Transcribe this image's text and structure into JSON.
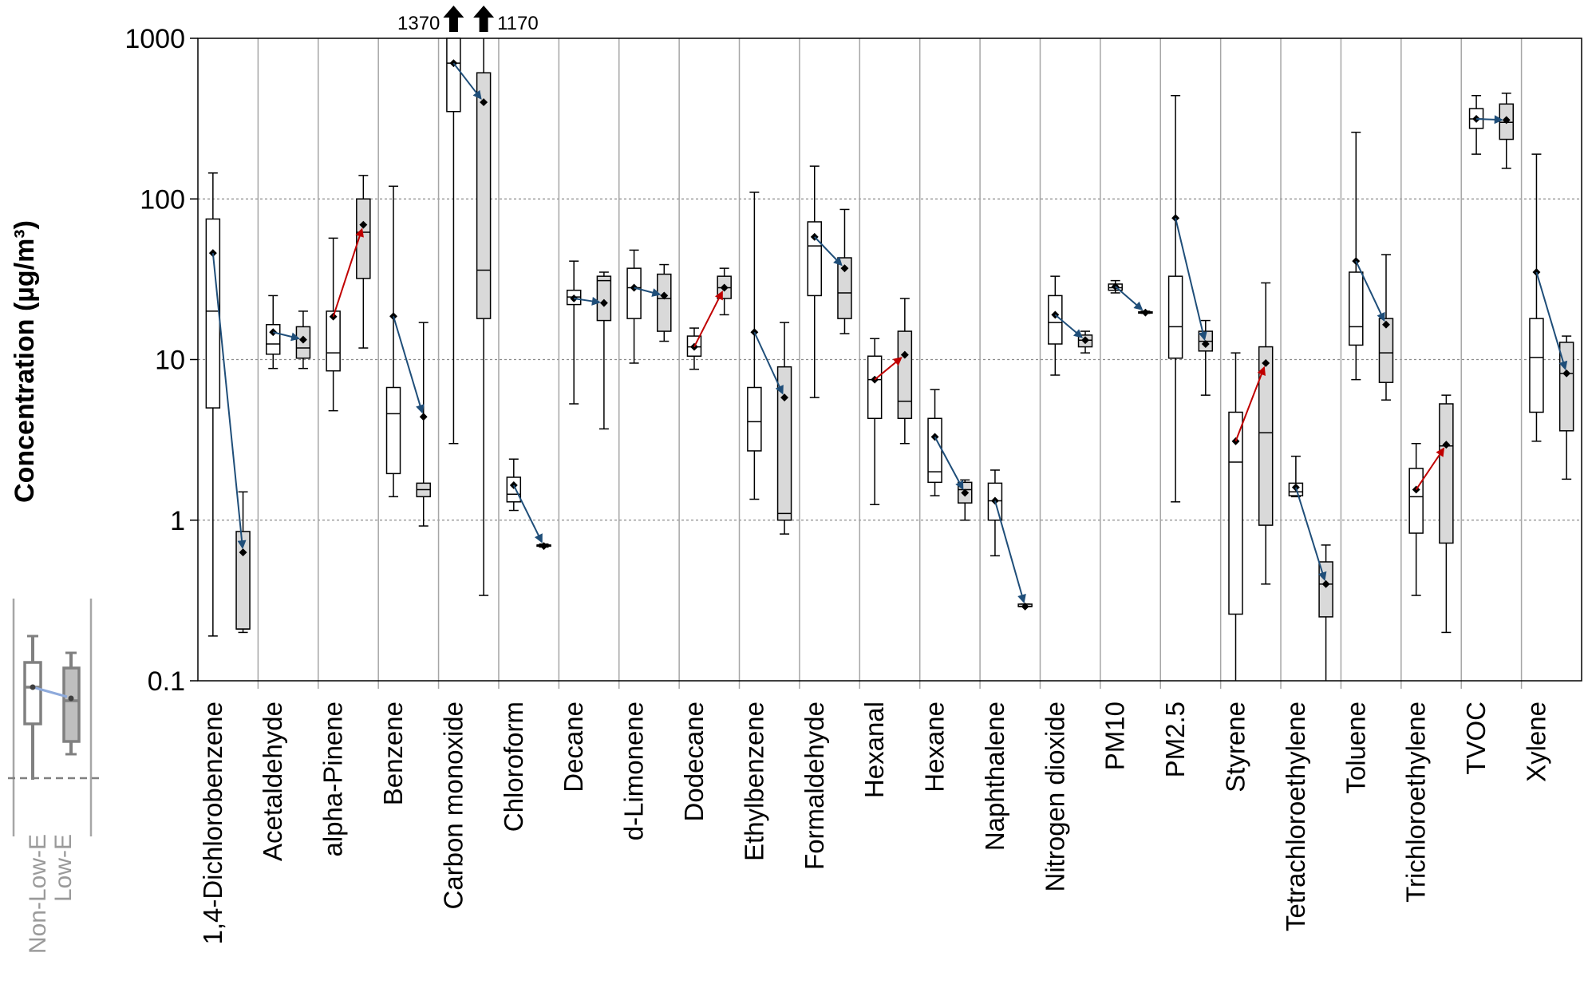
{
  "chart_data": {
    "type": "box",
    "ylabel": "Concentration (µg/m³)",
    "yscale": "log",
    "ylim": [
      0.1,
      1000
    ],
    "yticks": [
      {
        "value": 0.1,
        "label": "0.1"
      },
      {
        "value": 1,
        "label": "1"
      },
      {
        "value": 10,
        "label": "10"
      },
      {
        "value": 100,
        "label": "100"
      },
      {
        "value": 1000,
        "label": "1000"
      }
    ],
    "grid": true,
    "groups": [
      "Non-Low-E",
      "Low-E"
    ],
    "colors": {
      "non_low_e_fill": "#ffffff",
      "low_e_fill": "#d9d9d9",
      "decrease_arrow": "#1f4e79",
      "increase_arrow": "#c00000"
    },
    "categories": [
      {
        "name": "1,4-Dichlorobenzene",
        "non_low_e": {
          "min": 0.19,
          "q1": 5,
          "median": 20,
          "q3": 75,
          "max": 145,
          "mean": 46
        },
        "low_e": {
          "min": 0.2,
          "q1": 0.21,
          "median": 0.21,
          "q3": 0.85,
          "max": 1.5,
          "mean": 0.63
        },
        "trend": "decrease"
      },
      {
        "name": "Acetaldehyde",
        "non_low_e": {
          "min": 8.8,
          "q1": 10.8,
          "median": 12.5,
          "q3": 16.5,
          "max": 25,
          "mean": 14.8
        },
        "low_e": {
          "min": 8.8,
          "q1": 10.2,
          "median": 11.8,
          "q3": 16,
          "max": 20,
          "mean": 13.3
        },
        "trend": "decrease"
      },
      {
        "name": "alpha-Pinene",
        "non_low_e": {
          "min": 4.8,
          "q1": 8.5,
          "median": 11,
          "q3": 20,
          "max": 57,
          "mean": 18.5
        },
        "low_e": {
          "min": 11.8,
          "q1": 32,
          "median": 62,
          "q3": 100,
          "max": 140,
          "mean": 69
        },
        "trend": "increase"
      },
      {
        "name": "Benzene",
        "non_low_e": {
          "min": 1.4,
          "q1": 1.95,
          "median": 4.6,
          "q3": 6.7,
          "max": 120,
          "mean": 18.6
        },
        "low_e": {
          "min": 0.92,
          "q1": 1.4,
          "median": 1.55,
          "q3": 1.7,
          "max": 17,
          "mean": 4.4
        },
        "trend": "decrease"
      },
      {
        "name": "Carbon monoxide",
        "non_low_e": {
          "min": 3,
          "q1": 350,
          "median": 700,
          "q3": 1000,
          "max": 1000,
          "mean": 700
        },
        "low_e": {
          "min": 0.34,
          "q1": 18,
          "median": 36,
          "q3": 610,
          "max": 1000,
          "mean": 400
        },
        "trend": "decrease",
        "clipped_max": [
          "1370",
          "1170"
        ]
      },
      {
        "name": "Chloroform",
        "non_low_e": {
          "min": 1.15,
          "q1": 1.3,
          "median": 1.45,
          "q3": 1.85,
          "max": 2.4,
          "mean": 1.65
        },
        "low_e": {
          "min": 0.68,
          "q1": 0.69,
          "median": 0.7,
          "q3": 0.7,
          "max": 0.71,
          "mean": 0.69
        },
        "trend": "decrease"
      },
      {
        "name": "Decane",
        "non_low_e": {
          "min": 5.3,
          "q1": 22,
          "median": 24.5,
          "q3": 27,
          "max": 41,
          "mean": 24
        },
        "low_e": {
          "min": 3.7,
          "q1": 17.5,
          "median": 31,
          "q3": 33,
          "max": 35,
          "mean": 22.5
        },
        "trend": "decrease"
      },
      {
        "name": "d-Limonene",
        "non_low_e": {
          "min": 9.5,
          "q1": 18,
          "median": 28,
          "q3": 37,
          "max": 48,
          "mean": 28
        },
        "low_e": {
          "min": 13,
          "q1": 15,
          "median": 24,
          "q3": 34,
          "max": 39,
          "mean": 25
        },
        "trend": "decrease"
      },
      {
        "name": "Dodecane",
        "non_low_e": {
          "min": 8.7,
          "q1": 10.5,
          "median": 12,
          "q3": 14,
          "max": 15.7,
          "mean": 12
        },
        "low_e": {
          "min": 19,
          "q1": 24,
          "median": 28,
          "q3": 33,
          "max": 37,
          "mean": 28
        },
        "trend": "increase"
      },
      {
        "name": "Ethylbenzene",
        "non_low_e": {
          "min": 1.35,
          "q1": 2.7,
          "median": 4.1,
          "q3": 6.7,
          "max": 110,
          "mean": 14.8
        },
        "low_e": {
          "min": 0.82,
          "q1": 1,
          "median": 1.1,
          "q3": 9,
          "max": 17,
          "mean": 5.8
        },
        "trend": "decrease"
      },
      {
        "name": "Formaldehyde",
        "non_low_e": {
          "min": 5.8,
          "q1": 25,
          "median": 51,
          "q3": 72,
          "max": 160,
          "mean": 58
        },
        "low_e": {
          "min": 14.5,
          "q1": 18,
          "median": 26,
          "q3": 43,
          "max": 86,
          "mean": 37
        },
        "trend": "decrease"
      },
      {
        "name": "Hexanal",
        "non_low_e": {
          "min": 1.25,
          "q1": 4.3,
          "median": 7.5,
          "q3": 10.5,
          "max": 13.5,
          "mean": 7.5
        },
        "low_e": {
          "min": 3,
          "q1": 4.3,
          "median": 5.5,
          "q3": 15,
          "max": 24,
          "mean": 10.7
        },
        "trend": "increase"
      },
      {
        "name": "Hexane",
        "non_low_e": {
          "min": 1.42,
          "q1": 1.72,
          "median": 2,
          "q3": 4.3,
          "max": 6.5,
          "mean": 3.3
        },
        "low_e": {
          "min": 1,
          "q1": 1.28,
          "median": 1.55,
          "q3": 1.72,
          "max": 1.78,
          "mean": 1.48
        },
        "trend": "decrease"
      },
      {
        "name": "Naphthalene",
        "non_low_e": {
          "min": 0.6,
          "q1": 1,
          "median": 1.32,
          "q3": 1.7,
          "max": 2.05,
          "mean": 1.32
        },
        "low_e": {
          "min": 0.29,
          "q1": 0.29,
          "median": 0.29,
          "q3": 0.3,
          "max": 0.3,
          "mean": 0.29
        },
        "trend": "decrease"
      },
      {
        "name": "Nitrogen dioxide",
        "non_low_e": {
          "min": 8,
          "q1": 12.5,
          "median": 17,
          "q3": 25,
          "max": 33,
          "mean": 19
        },
        "low_e": {
          "min": 11,
          "q1": 12,
          "median": 13.2,
          "q3": 14.2,
          "max": 15,
          "mean": 13.2
        },
        "trend": "decrease"
      },
      {
        "name": "PM10",
        "non_low_e": {
          "min": 26,
          "q1": 27,
          "median": 28,
          "q3": 29.5,
          "max": 31,
          "mean": 28.5
        },
        "low_e": {
          "min": 19.4,
          "q1": 19.5,
          "median": 19.6,
          "q3": 19.8,
          "max": 20,
          "mean": 19.6
        },
        "trend": "decrease"
      },
      {
        "name": "PM2.5",
        "non_low_e": {
          "min": 1.3,
          "q1": 10.2,
          "median": 16,
          "q3": 33,
          "max": 440,
          "mean": 76
        },
        "low_e": {
          "min": 6,
          "q1": 11.3,
          "median": 13,
          "q3": 15,
          "max": 17.5,
          "mean": 12.5
        },
        "trend": "decrease"
      },
      {
        "name": "Styrene",
        "non_low_e": {
          "min": 0.1,
          "q1": 0.26,
          "median": 2.3,
          "q3": 4.7,
          "max": 11,
          "mean": 3.1
        },
        "low_e": {
          "min": 0.4,
          "q1": 0.93,
          "median": 3.5,
          "q3": 12,
          "max": 30,
          "mean": 9.5
        },
        "trend": "increase"
      },
      {
        "name": "Tetrachloroethylene",
        "non_low_e": {
          "min": 1.4,
          "q1": 1.42,
          "median": 1.5,
          "q3": 1.7,
          "max": 2.5,
          "mean": 1.6
        },
        "low_e": {
          "min": 0.1,
          "q1": 0.25,
          "median": 0.4,
          "q3": 0.55,
          "max": 0.7,
          "mean": 0.4
        },
        "trend": "decrease"
      },
      {
        "name": "Toluene",
        "non_low_e": {
          "min": 7.5,
          "q1": 12.3,
          "median": 16,
          "q3": 35,
          "max": 260,
          "mean": 41
        },
        "low_e": {
          "min": 5.6,
          "q1": 7.2,
          "median": 11,
          "q3": 18,
          "max": 45,
          "mean": 16.5
        },
        "trend": "decrease"
      },
      {
        "name": "Trichloroethylene",
        "non_low_e": {
          "min": 0.34,
          "q1": 0.83,
          "median": 1.4,
          "q3": 2.1,
          "max": 3,
          "mean": 1.55
        },
        "low_e": {
          "min": 0.2,
          "q1": 0.72,
          "median": 2.9,
          "q3": 5.3,
          "max": 6,
          "mean": 2.95
        },
        "trend": "increase"
      },
      {
        "name": "TVOC",
        "non_low_e": {
          "min": 190,
          "q1": 275,
          "median": 315,
          "q3": 365,
          "max": 440,
          "mean": 315
        },
        "low_e": {
          "min": 155,
          "q1": 235,
          "median": 300,
          "q3": 390,
          "max": 455,
          "mean": 310
        },
        "trend": "decrease"
      },
      {
        "name": "Xylene",
        "non_low_e": {
          "min": 3.1,
          "q1": 4.7,
          "median": 10.3,
          "q3": 18,
          "max": 190,
          "mean": 35
        },
        "low_e": {
          "min": 1.8,
          "q1": 3.6,
          "median": 8.2,
          "q3": 12.8,
          "max": 14,
          "mean": 8.2
        },
        "trend": "decrease"
      }
    ],
    "annotations": [
      {
        "text": "1370",
        "category": "Carbon monoxide",
        "group": "Non-Low-E"
      },
      {
        "text": "1170",
        "category": "Carbon monoxide",
        "group": "Low-E"
      }
    ],
    "legend": {
      "labels": [
        "Non-Low-E",
        "Low-E"
      ],
      "placement": "bottom-left"
    }
  }
}
